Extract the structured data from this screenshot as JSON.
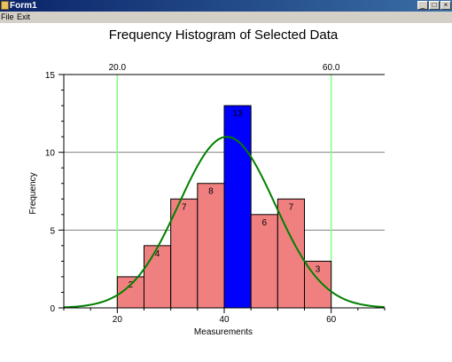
{
  "window": {
    "title": "Form1",
    "minimize_glyph": "_",
    "maximize_glyph": "□",
    "close_glyph": "×"
  },
  "menu": {
    "items": [
      "File",
      "Exit"
    ]
  },
  "colors": {
    "bar": "#f08080",
    "highlight_bar": "#0000ff",
    "curve": "#008000",
    "limit_line": "#80ff80",
    "gridline": "#808080"
  },
  "chart_data": {
    "type": "bar",
    "title": "Frequency Histogram of Selected Data",
    "xlabel": "Measurements",
    "ylabel": "Frequency",
    "xlim": [
      10,
      70
    ],
    "ylim": [
      0,
      15
    ],
    "x_ticks": [
      20,
      40,
      60
    ],
    "y_ticks": [
      0,
      5,
      10,
      15
    ],
    "bins": [
      {
        "start": 20,
        "end": 25,
        "value": 2,
        "label": "2"
      },
      {
        "start": 25,
        "end": 30,
        "value": 4,
        "label": "4"
      },
      {
        "start": 30,
        "end": 35,
        "value": 7,
        "label": "7"
      },
      {
        "start": 35,
        "end": 40,
        "value": 8,
        "label": "8"
      },
      {
        "start": 40,
        "end": 45,
        "value": 13,
        "label": "13",
        "highlight": true
      },
      {
        "start": 45,
        "end": 50,
        "value": 6,
        "label": "6"
      },
      {
        "start": 50,
        "end": 55,
        "value": 7,
        "label": "7"
      },
      {
        "start": 55,
        "end": 60,
        "value": 3,
        "label": "3"
      }
    ],
    "normal_curve": {
      "mean": 40.5,
      "sd": 9.0,
      "peak": 11
    },
    "limit_lines": [
      {
        "x": 20,
        "label": "20.0"
      },
      {
        "x": 60,
        "label": "60.0"
      }
    ],
    "grid": true
  }
}
